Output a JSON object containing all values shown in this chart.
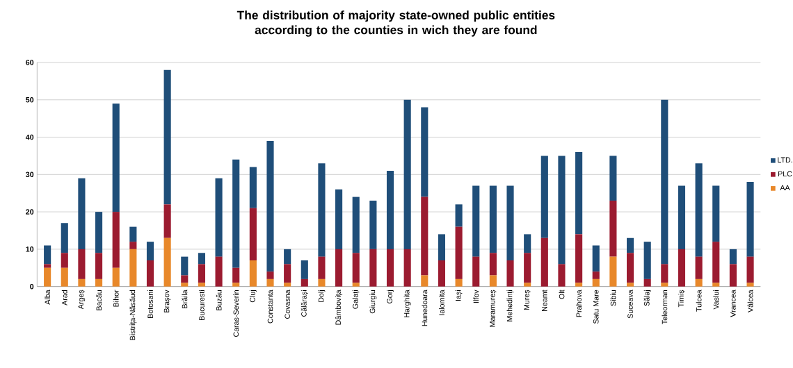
{
  "chart_data": {
    "type": "bar",
    "stacked": true,
    "title": "The distribution of majority state-owned public entities according to the counties in wich  they are found",
    "categories": [
      "Alba",
      "Arad",
      "Argeș",
      "Bacău",
      "Bihor",
      "Bistrița-Năsăud",
      "Botosani",
      "Brașov",
      "Brăila",
      "Bucuresti",
      "Buzău",
      "Caras-Severin",
      "Cluj",
      "Constanta",
      "Covasna",
      "Călărași",
      "Dolj",
      "Dâmbovița",
      "Galați",
      "Giurgiu",
      "Gorj",
      "Harghita",
      "Hunedoara",
      "Ialomita",
      "Iași",
      "Ilfov",
      "Maramureș",
      "Mehedinți",
      "Mureș",
      "Neamt",
      "Olt",
      "Prahova",
      "Satu Mare",
      "Sibiu",
      "Suceava",
      "Sălaj",
      "Teleorman",
      "Timiș",
      "Tulcea",
      "Vaslui",
      "Vrancea",
      "Vâlcea"
    ],
    "series": [
      {
        "name": "AA",
        "color": "#e8882a",
        "values": [
          5,
          5,
          2,
          2,
          5,
          10,
          0,
          13,
          1,
          1,
          0,
          1,
          7,
          2,
          1,
          0,
          2,
          0,
          1,
          0,
          0,
          0,
          3,
          0,
          2,
          0,
          3,
          0,
          1,
          0,
          0,
          1,
          2,
          8,
          1,
          0,
          1,
          0,
          2,
          1,
          0,
          1
        ]
      },
      {
        "name": "PLC",
        "color": "#9b1b30",
        "values": [
          1,
          4,
          8,
          7,
          15,
          2,
          7,
          9,
          2,
          5,
          8,
          4,
          14,
          2,
          5,
          2,
          6,
          10,
          8,
          10,
          10,
          10,
          21,
          7,
          14,
          8,
          6,
          7,
          8,
          13,
          6,
          13,
          2,
          15,
          8,
          2,
          5,
          10,
          6,
          11,
          6,
          7
        ]
      },
      {
        "name": "LTD.",
        "color": "#1f4e79",
        "values": [
          5,
          8,
          19,
          11,
          29,
          4,
          5,
          36,
          5,
          3,
          21,
          29,
          11,
          35,
          4,
          5,
          25,
          16,
          15,
          13,
          21,
          40,
          24,
          7,
          6,
          19,
          18,
          20,
          5,
          22,
          29,
          22,
          7,
          12,
          4,
          10,
          44,
          17,
          25,
          15,
          4,
          20
        ]
      }
    ],
    "ylim": [
      0,
      60
    ],
    "yticks": [
      0,
      10,
      20,
      30,
      40,
      50,
      60
    ],
    "grid": "y",
    "legend": "right"
  }
}
